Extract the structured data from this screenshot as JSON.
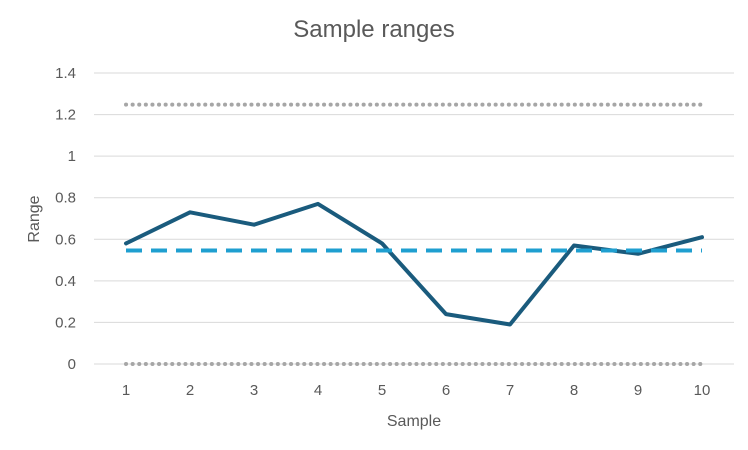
{
  "chart_data": {
    "type": "line",
    "title": "Sample ranges",
    "xlabel": "Sample",
    "ylabel": "Range",
    "categories": [
      "1",
      "2",
      "3",
      "4",
      "5",
      "6",
      "7",
      "8",
      "9",
      "10"
    ],
    "ylim": [
      0,
      1.4
    ],
    "yticks": [
      "0",
      "0.2",
      "0.4",
      "0.6",
      "0.8",
      "1",
      "1.2",
      "1.4"
    ],
    "grid": true,
    "legend": "none",
    "series": [
      {
        "values": [
          0.58,
          0.73,
          0.67,
          0.77,
          0.58,
          0.24,
          0.19,
          0.57,
          0.53,
          0.61
        ],
        "color": "#1a5b7d",
        "style": "solid"
      },
      {
        "values": [
          0.546,
          0.546,
          0.546,
          0.546,
          0.546,
          0.546,
          0.546,
          0.546,
          0.546,
          0.546
        ],
        "color": "#1f9fd0",
        "style": "dashed"
      },
      {
        "values": [
          1.248,
          1.248,
          1.248,
          1.248,
          1.248,
          1.248,
          1.248,
          1.248,
          1.248,
          1.248
        ],
        "color": "#a6a6a6",
        "style": "dotted"
      },
      {
        "values": [
          0,
          0,
          0,
          0,
          0,
          0,
          0,
          0,
          0,
          0
        ],
        "color": "#a6a6a6",
        "style": "dotted"
      }
    ]
  }
}
